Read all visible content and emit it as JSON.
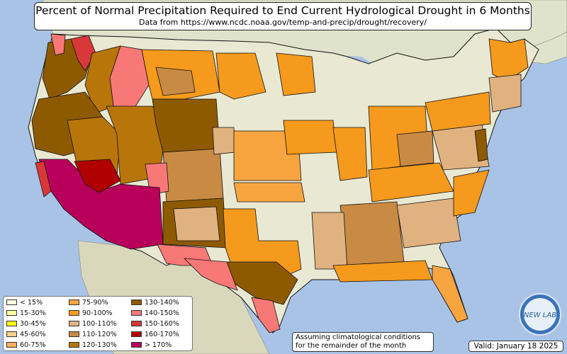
{
  "title": "Percent of Normal Precipitation Required to End Current Hydrological Drought in 6 Months",
  "subtitle": "Data from https://www.ncdc.noaa.gov/temp-and-precip/drought/recovery/",
  "legend": [
    {
      "label": "< 15%",
      "color": "#fffde0"
    },
    {
      "label": "15-30%",
      "color": "#ffff9e"
    },
    {
      "label": "30-45%",
      "color": "#ffff00"
    },
    {
      "label": "45-60%",
      "color": "#f7d08a"
    },
    {
      "label": "60-75%",
      "color": "#f7b25a"
    },
    {
      "label": "75-90%",
      "color": "#f8a540"
    },
    {
      "label": "90-100%",
      "color": "#f59a1c"
    },
    {
      "label": "100-110%",
      "color": "#e0b280"
    },
    {
      "label": "110-120%",
      "color": "#c98a44"
    },
    {
      "label": "120-130%",
      "color": "#b8750a"
    },
    {
      "label": "130-140%",
      "color": "#8e5a00"
    },
    {
      "label": "140-150%",
      "color": "#f87878"
    },
    {
      "label": "150-160%",
      "color": "#d83838"
    },
    {
      "label": "160-170%",
      "color": "#b00000"
    },
    {
      "label": "> 170%",
      "color": "#b8005a"
    }
  ],
  "note": {
    "line1": "Assuming climatological conditions",
    "line2": "for the remainder of the month"
  },
  "valid": "Valid: January 18 2025",
  "logo_text": "NEW LAB",
  "colors": {
    "ocean": "#a9c3e6",
    "land": "#e9e8d2",
    "border": "#111111"
  }
}
